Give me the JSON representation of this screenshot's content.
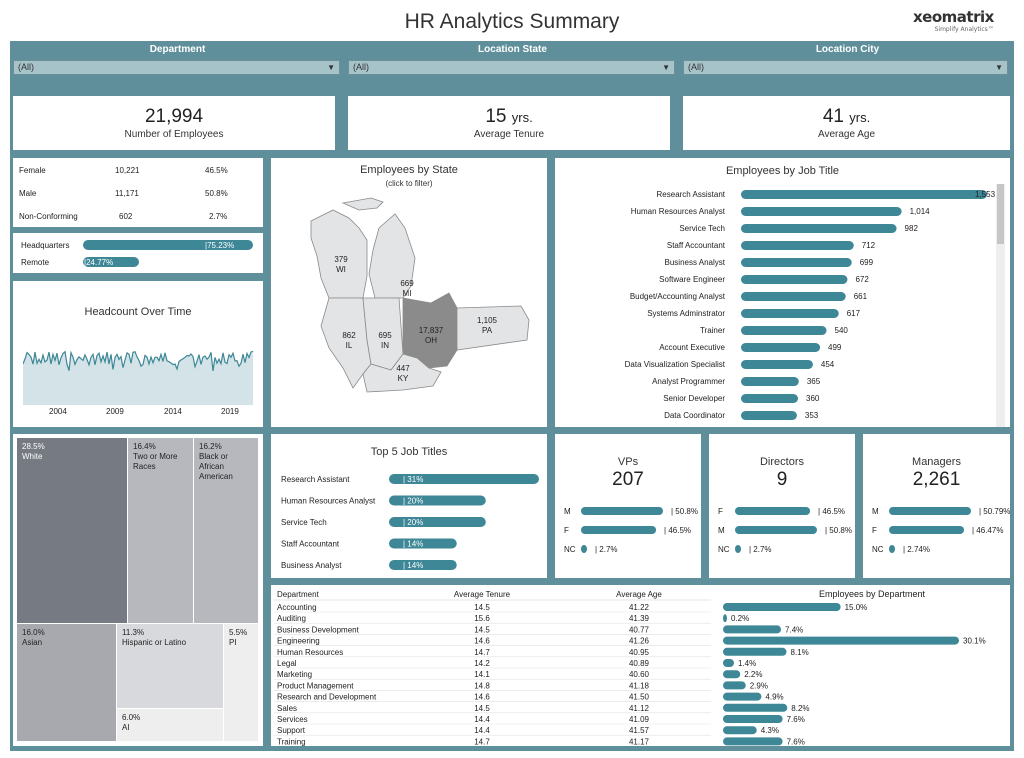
{
  "header": {
    "title": "HR Analytics Summary",
    "logo_name": "xeomatrix",
    "logo_tagline": "Simplify Analytics™"
  },
  "filters": [
    {
      "label": "Department",
      "value": "(All)"
    },
    {
      "label": "Location State",
      "value": "(All)"
    },
    {
      "label": "Location City",
      "value": "(All)"
    }
  ],
  "kpis": [
    {
      "value": "21,994",
      "unit": "",
      "label": "Number of Employees"
    },
    {
      "value": "15",
      "unit": "yrs.",
      "label": "Average Tenure"
    },
    {
      "value": "41",
      "unit": "yrs.",
      "label": "Average Age"
    }
  ],
  "gender": [
    {
      "label": "Female",
      "count": "10,221",
      "pct": "46.5%"
    },
    {
      "label": "Male",
      "count": "11,171",
      "pct": "50.8%"
    },
    {
      "label": "Non-Conforming",
      "count": "602",
      "pct": "2.7%"
    }
  ],
  "location_type": [
    {
      "label": "Headquarters",
      "pct_label": "75.23%",
      "pct": 75.23
    },
    {
      "label": "Remote",
      "pct_label": "24.77%",
      "pct": 24.77
    }
  ],
  "headcount": {
    "title": "Headcount Over Time",
    "years": [
      "2004",
      "2009",
      "2014",
      "2019"
    ]
  },
  "state_map": {
    "title": "Employees by State",
    "subtitle": "(click to filter)",
    "states": [
      {
        "abbr": "WI",
        "count": "379"
      },
      {
        "abbr": "MI",
        "count": "669"
      },
      {
        "abbr": "IL",
        "count": "862"
      },
      {
        "abbr": "IN",
        "count": "695"
      },
      {
        "abbr": "OH",
        "count": "17,837"
      },
      {
        "abbr": "PA",
        "count": "1,105"
      },
      {
        "abbr": "KY",
        "count": "447"
      }
    ]
  },
  "job_titles": {
    "title": "Employees by Job Title",
    "items": [
      {
        "label": "Research Assistant",
        "value": 1553,
        "value_label": "1,553"
      },
      {
        "label": "Human Resources Analyst",
        "value": 1014,
        "value_label": "1,014"
      },
      {
        "label": "Service Tech",
        "value": 982,
        "value_label": "982"
      },
      {
        "label": "Staff Accountant",
        "value": 712,
        "value_label": "712"
      },
      {
        "label": "Business Analyst",
        "value": 699,
        "value_label": "699"
      },
      {
        "label": "Software Engineer",
        "value": 672,
        "value_label": "672"
      },
      {
        "label": "Budget/Accounting Analyst",
        "value": 661,
        "value_label": "661"
      },
      {
        "label": "Systems Adminstrator",
        "value": 617,
        "value_label": "617"
      },
      {
        "label": "Trainer",
        "value": 540,
        "value_label": "540"
      },
      {
        "label": "Account Executive",
        "value": 499,
        "value_label": "499"
      },
      {
        "label": "Data Visualization Specialist",
        "value": 454,
        "value_label": "454"
      },
      {
        "label": "Analyst Programmer",
        "value": 365,
        "value_label": "365"
      },
      {
        "label": "Senior Developer",
        "value": 360,
        "value_label": "360"
      },
      {
        "label": "Data Coordinator",
        "value": 353,
        "value_label": "353"
      }
    ]
  },
  "ethnicity": [
    {
      "pct": "28.5%",
      "label": "White",
      "color": "#767a82"
    },
    {
      "pct": "16.4%",
      "label": "Two or More Races",
      "color": "#b6b8bd"
    },
    {
      "pct": "16.2%",
      "label": "Black or African American",
      "color": "#b6b8bd"
    },
    {
      "pct": "16.0%",
      "label": "Asian",
      "color": "#a7a9ae"
    },
    {
      "pct": "11.3%",
      "label": "Hispanic or Latino",
      "color": "#d8d9dc"
    },
    {
      "pct": "5.5%",
      "label": "PI",
      "color": "#eeeeee"
    },
    {
      "pct": "6.0%",
      "label": "AI",
      "color": "#eeeeee"
    }
  ],
  "top5": {
    "title": "Top 5 Job Titles",
    "items": [
      {
        "label": "Research Assistant",
        "pct": 31,
        "pct_label": "31%"
      },
      {
        "label": "Human Resources Analyst",
        "pct": 20,
        "pct_label": "20%"
      },
      {
        "label": "Service Tech",
        "pct": 20,
        "pct_label": "20%"
      },
      {
        "label": "Staff Accountant",
        "pct": 14,
        "pct_label": "14%"
      },
      {
        "label": "Business Analyst",
        "pct": 14,
        "pct_label": "14%"
      }
    ]
  },
  "roles": [
    {
      "title": "VPs",
      "count": "207",
      "rows": [
        {
          "g": "M",
          "pct": 50.8,
          "label": "50.8%"
        },
        {
          "g": "F",
          "pct": 46.5,
          "label": "46.5%"
        },
        {
          "g": "NC",
          "pct": 2.7,
          "label": "2.7%"
        }
      ]
    },
    {
      "title": "Directors",
      "count": "9",
      "rows": [
        {
          "g": "F",
          "pct": 46.5,
          "label": "46.5%"
        },
        {
          "g": "M",
          "pct": 50.8,
          "label": "50.8%"
        },
        {
          "g": "NC",
          "pct": 2.7,
          "label": "2.7%"
        }
      ]
    },
    {
      "title": "Managers",
      "count": "2,261",
      "rows": [
        {
          "g": "M",
          "pct": 50.79,
          "label": "50.79%"
        },
        {
          "g": "F",
          "pct": 46.47,
          "label": "46.47%"
        },
        {
          "g": "NC",
          "pct": 2.74,
          "label": "2.74%"
        }
      ]
    }
  ],
  "dept_table": {
    "headers": [
      "Department",
      "Average Tenure",
      "Average Age",
      "Employees by Department"
    ],
    "rows": [
      {
        "dept": "Accounting",
        "tenure": "14.5",
        "age": "41.22",
        "pct": 15.0,
        "pct_label": "15.0%"
      },
      {
        "dept": "Auditing",
        "tenure": "15.6",
        "age": "41.39",
        "pct": 0.2,
        "pct_label": "0.2%"
      },
      {
        "dept": "Business Development",
        "tenure": "14.5",
        "age": "40.77",
        "pct": 7.4,
        "pct_label": "7.4%"
      },
      {
        "dept": "Engineering",
        "tenure": "14.6",
        "age": "41.26",
        "pct": 30.1,
        "pct_label": "30.1%"
      },
      {
        "dept": "Human Resources",
        "tenure": "14.7",
        "age": "40.95",
        "pct": 8.1,
        "pct_label": "8.1%"
      },
      {
        "dept": "Legal",
        "tenure": "14.2",
        "age": "40.89",
        "pct": 1.4,
        "pct_label": "1.4%"
      },
      {
        "dept": "Marketing",
        "tenure": "14.1",
        "age": "40.60",
        "pct": 2.2,
        "pct_label": "2.2%"
      },
      {
        "dept": "Product Management",
        "tenure": "14.8",
        "age": "41.18",
        "pct": 2.9,
        "pct_label": "2.9%"
      },
      {
        "dept": "Research and Development",
        "tenure": "14.6",
        "age": "41.50",
        "pct": 4.9,
        "pct_label": "4.9%"
      },
      {
        "dept": "Sales",
        "tenure": "14.5",
        "age": "41.12",
        "pct": 8.2,
        "pct_label": "8.2%"
      },
      {
        "dept": "Services",
        "tenure": "14.4",
        "age": "41.09",
        "pct": 7.6,
        "pct_label": "7.6%"
      },
      {
        "dept": "Support",
        "tenure": "14.4",
        "age": "41.57",
        "pct": 4.3,
        "pct_label": "4.3%"
      },
      {
        "dept": "Training",
        "tenure": "14.7",
        "age": "41.17",
        "pct": 7.6,
        "pct_label": "7.6%"
      }
    ]
  },
  "colors": {
    "accent": "#3d8797",
    "frame": "#5f8f9a",
    "ohio": "#8b8b8b",
    "state": "#e3e4e5"
  }
}
